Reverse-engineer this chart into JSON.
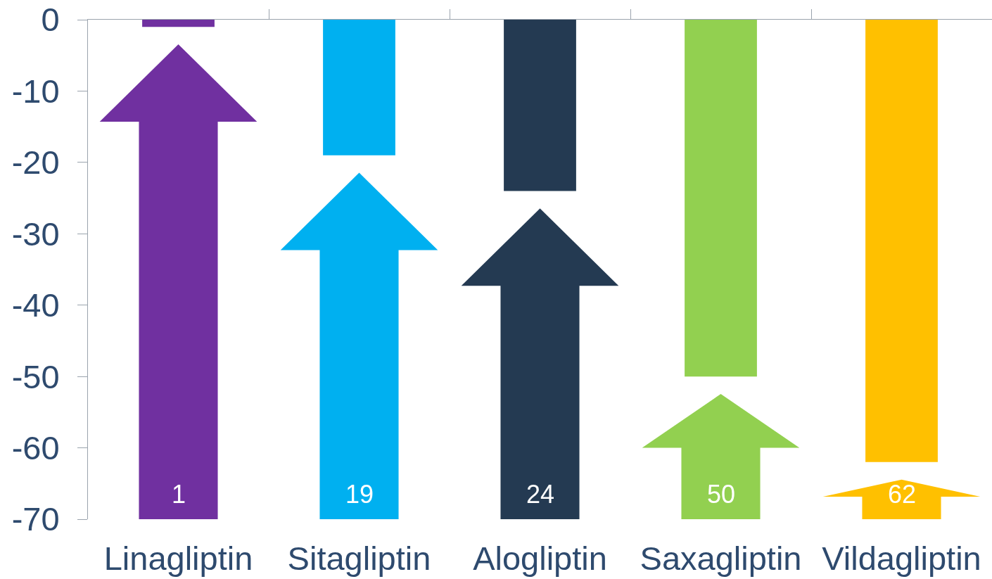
{
  "chart_data": {
    "type": "bar",
    "categories": [
      "Linagliptin",
      "Sitagliptin",
      "Alogliptin",
      "Saxagliptin",
      "Vildagliptin"
    ],
    "values": [
      -1,
      -19,
      -24,
      -50,
      -62
    ],
    "colors": [
      "#7030a0",
      "#00b0f0",
      "#243a52",
      "#92d050",
      "#ffc000"
    ],
    "ylim": [
      -70,
      0
    ],
    "yticks": [
      0,
      -10,
      -20,
      -30,
      -40,
      -50,
      -60,
      -70
    ],
    "annotations": [
      "1",
      "19",
      "24",
      "50",
      "62"
    ]
  }
}
